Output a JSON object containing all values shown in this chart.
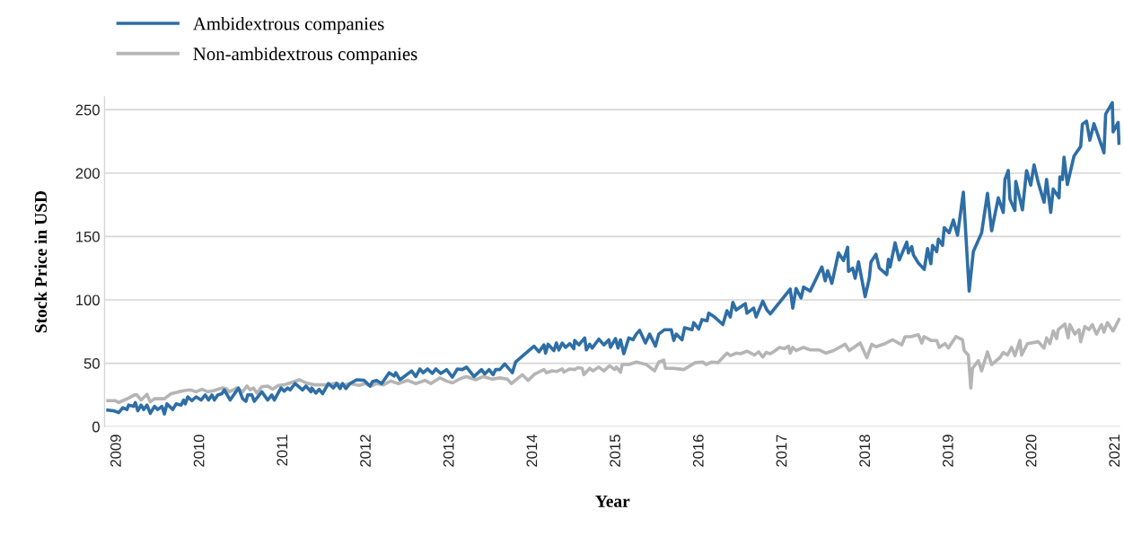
{
  "chart_data": {
    "type": "line",
    "xlabel": "Year",
    "ylabel": "Stock Price in USD",
    "xlim": [
      2008.85,
      2021.06
    ],
    "xticks": [
      2009,
      2010,
      2011,
      2012,
      2013,
      2014,
      2015,
      2016,
      2017,
      2018,
      2019,
      2020,
      2021
    ],
    "ylim": [
      0,
      260
    ],
    "yticks": [
      0,
      50,
      100,
      150,
      200,
      250
    ],
    "grid": "y",
    "legend": "top left",
    "marker": "none",
    "line_style": "solid",
    "series": [
      {
        "name": "Ambidextrous companies",
        "color": "#2e6ea6",
        "x": [
          2008.89,
          2008.96,
          2009.02,
          2009.07,
          2009.12,
          2009.14,
          2009.2,
          2009.22,
          2009.25,
          2009.29,
          2009.32,
          2009.36,
          2009.4,
          2009.45,
          2009.49,
          2009.54,
          2009.57,
          2009.6,
          2009.67,
          2009.71,
          2009.77,
          2009.8,
          2009.82,
          2009.85,
          2009.9,
          2009.95,
          2010.01,
          2010.06,
          2010.1,
          2010.14,
          2010.17,
          2010.21,
          2010.26,
          2010.29,
          2010.36,
          2010.46,
          2010.51,
          2010.55,
          2010.57,
          2010.62,
          2010.65,
          2010.74,
          2010.81,
          2010.86,
          2010.89,
          2010.97,
          2011.01,
          2011.05,
          2011.08,
          2011.14,
          2011.23,
          2011.27,
          2011.33,
          2011.34,
          2011.39,
          2011.43,
          2011.47,
          2011.54,
          2011.6,
          2011.64,
          2011.68,
          2011.71,
          2011.75,
          2011.8,
          2011.88,
          2011.97,
          2012.04,
          2012.07,
          2012.12,
          2012.18,
          2012.27,
          2012.33,
          2012.35,
          2012.4,
          2012.54,
          2012.59,
          2012.64,
          2012.68,
          2012.73,
          2012.79,
          2012.83,
          2012.89,
          2012.96,
          2013.03,
          2013.09,
          2013.15,
          2013.2,
          2013.29,
          2013.38,
          2013.42,
          2013.47,
          2013.52,
          2013.55,
          2013.6,
          2013.66,
          2013.75,
          2013.79,
          2014.01,
          2014.07,
          2014.13,
          2014.15,
          2014.18,
          2014.25,
          2014.28,
          2014.31,
          2014.35,
          2014.39,
          2014.44,
          2014.49,
          2014.5,
          2014.55,
          2014.62,
          2014.64,
          2014.68,
          2014.71,
          2014.79,
          2014.85,
          2014.91,
          2014.93,
          2014.99,
          2015.02,
          2015.05,
          2015.09,
          2015.15,
          2015.2,
          2015.24,
          2015.28,
          2015.35,
          2015.4,
          2015.47,
          2015.51,
          2015.58,
          2015.66,
          2015.69,
          2015.72,
          2015.79,
          2015.82,
          2015.91,
          2015.93,
          2015.99,
          2016.03,
          2016.09,
          2016.11,
          2016.18,
          2016.28,
          2016.33,
          2016.37,
          2016.4,
          2016.44,
          2016.55,
          2016.57,
          2016.65,
          2016.68,
          2016.76,
          2016.81,
          2016.85,
          2017.09,
          2017.12,
          2017.16,
          2017.22,
          2017.25,
          2017.33,
          2017.47,
          2017.51,
          2017.54,
          2017.59,
          2017.67,
          2017.73,
          2017.78,
          2017.79,
          2017.84,
          2017.87,
          2017.91,
          2017.99,
          2018.04,
          2018.06,
          2018.12,
          2018.16,
          2018.25,
          2018.27,
          2018.29,
          2018.35,
          2018.4,
          2018.49,
          2018.51,
          2018.55,
          2018.57,
          2018.63,
          2018.7,
          2018.74,
          2018.78,
          2018.8,
          2018.85,
          2018.87,
          2018.92,
          2018.94,
          2019.0,
          2019.05,
          2019.1,
          2019.17,
          2019.24,
          2019.29,
          2019.39,
          2019.46,
          2019.51,
          2019.59,
          2019.65,
          2019.67,
          2019.71,
          2019.73,
          2019.79,
          2019.8,
          2019.88,
          2019.93,
          2019.98,
          2020.02,
          2020.07,
          2020.14,
          2020.17,
          2020.22,
          2020.25,
          2020.32,
          2020.33,
          2020.36,
          2020.38,
          2020.42,
          2020.5,
          2020.58,
          2020.6,
          2020.65,
          2020.69,
          2020.74,
          2020.86,
          2020.88,
          2020.96,
          2020.97,
          2021.03,
          2021.04
        ],
        "values": [
          13,
          12.5,
          11,
          15,
          13.5,
          17,
          16,
          19,
          12.5,
          17,
          13.5,
          17,
          10.5,
          16,
          13.5,
          16,
          10,
          18,
          13.5,
          18,
          17,
          21,
          18,
          23.5,
          20.5,
          23.5,
          21,
          25,
          21,
          25,
          21,
          25,
          26,
          29,
          21,
          30.5,
          22,
          20,
          25,
          25,
          20,
          27.5,
          21,
          25,
          21,
          30.5,
          28,
          30.5,
          29,
          34,
          29,
          32,
          27.5,
          30.5,
          26.5,
          29.5,
          26,
          34,
          30.5,
          34,
          30,
          34,
          30,
          34,
          37,
          36.5,
          32,
          35.5,
          36.5,
          34,
          42.5,
          40,
          42.5,
          37,
          44,
          39.5,
          45.5,
          42.5,
          45.5,
          42,
          45.5,
          42,
          45,
          39,
          45.5,
          45,
          47,
          39.5,
          45,
          41.5,
          45,
          41,
          45,
          45,
          49.5,
          42.5,
          51,
          63.5,
          59,
          64.5,
          58,
          65,
          60,
          66,
          60.5,
          66,
          62.5,
          65.5,
          61.5,
          68,
          64.5,
          70,
          60.5,
          65,
          62,
          69,
          64.5,
          68.5,
          62.5,
          69.5,
          62,
          68.5,
          57.5,
          70,
          68.5,
          73,
          76,
          66,
          73,
          63.5,
          73,
          76.5,
          76.5,
          68,
          73,
          68.5,
          78,
          76.5,
          82,
          77,
          84.5,
          83.5,
          89.5,
          86.5,
          80.5,
          91.5,
          86.5,
          98,
          92,
          97,
          89.5,
          93.5,
          86.5,
          99,
          92,
          89,
          108.5,
          93.5,
          109,
          101.5,
          110,
          107,
          126,
          115,
          123,
          113,
          137,
          131,
          141.5,
          122.5,
          125,
          117,
          130,
          102.5,
          117,
          130,
          136,
          125,
          120,
          132,
          126,
          145,
          131.5,
          145.5,
          137,
          142,
          135.5,
          129,
          124,
          140.5,
          128.5,
          143,
          138,
          148,
          143,
          157,
          153,
          163,
          151,
          185,
          107,
          138,
          153,
          184,
          154.5,
          180.5,
          169,
          195,
          202,
          179.5,
          170.5,
          193.5,
          171,
          202,
          190.5,
          206.5,
          192.5,
          177,
          195,
          169,
          187.5,
          180.5,
          197,
          195,
          212.5,
          191,
          213.5,
          221,
          238.5,
          241,
          226,
          239,
          216,
          246.5,
          255.5,
          232.5,
          240,
          223.5
        ]
      },
      {
        "name": "Non-ambidextrous companies",
        "color": "#b5b5b5",
        "x": [
          2008.89,
          2008.98,
          2009.02,
          2009.07,
          2009.14,
          2009.21,
          2009.24,
          2009.29,
          2009.36,
          2009.4,
          2009.45,
          2009.54,
          2009.57,
          2009.65,
          2009.74,
          2009.81,
          2009.88,
          2009.95,
          2010.02,
          2010.09,
          2010.17,
          2010.26,
          2010.31,
          2010.35,
          2010.44,
          2010.51,
          2010.56,
          2010.6,
          2010.64,
          2010.68,
          2010.74,
          2010.81,
          2010.87,
          2010.94,
          2011.01,
          2011.08,
          2011.19,
          2011.27,
          2011.37,
          2011.55,
          2011.64,
          2011.7,
          2011.8,
          2011.91,
          2011.98,
          2012.05,
          2012.12,
          2012.2,
          2012.29,
          2012.38,
          2012.49,
          2012.59,
          2012.7,
          2012.77,
          2012.88,
          2012.96,
          2013.03,
          2013.1,
          2013.17,
          2013.2,
          2013.31,
          2013.4,
          2013.51,
          2013.6,
          2013.69,
          2013.74,
          2013.87,
          2013.94,
          2014.02,
          2014.13,
          2014.16,
          2014.23,
          2014.28,
          2014.35,
          2014.37,
          2014.44,
          2014.5,
          2014.54,
          2014.59,
          2014.61,
          2014.68,
          2014.72,
          2014.79,
          2014.85,
          2014.92,
          2014.98,
          2015.0,
          2015.05,
          2015.07,
          2015.15,
          2015.24,
          2015.36,
          2015.46,
          2015.51,
          2015.57,
          2015.59,
          2015.69,
          2015.81,
          2015.95,
          2016.04,
          2016.08,
          2016.15,
          2016.22,
          2016.33,
          2016.37,
          2016.44,
          2016.49,
          2016.57,
          2016.66,
          2016.71,
          2016.76,
          2016.8,
          2016.85,
          2016.91,
          2016.96,
          2017.02,
          2017.07,
          2017.09,
          2017.12,
          2017.16,
          2017.25,
          2017.33,
          2017.44,
          2017.52,
          2017.61,
          2017.75,
          2017.8,
          2017.93,
          2018.01,
          2018.07,
          2018.12,
          2018.23,
          2018.32,
          2018.43,
          2018.47,
          2018.54,
          2018.63,
          2018.67,
          2018.7,
          2018.78,
          2018.85,
          2018.88,
          2018.95,
          2018.99,
          2019.08,
          2019.16,
          2019.18,
          2019.23,
          2019.26,
          2019.28,
          2019.35,
          2019.39,
          2019.46,
          2019.51,
          2019.61,
          2019.65,
          2019.7,
          2019.75,
          2019.79,
          2019.85,
          2019.87,
          2019.94,
          2020.07,
          2020.14,
          2020.17,
          2020.21,
          2020.25,
          2020.29,
          2020.31,
          2020.39,
          2020.43,
          2020.45,
          2020.51,
          2020.56,
          2020.58,
          2020.63,
          2020.68,
          2020.72,
          2020.77,
          2020.83,
          2020.86,
          2020.9,
          2020.97,
          2021.04
        ],
        "values": [
          20.5,
          20.5,
          19,
          20.5,
          22.5,
          25,
          25,
          21,
          25.5,
          19.5,
          22,
          22,
          22,
          26,
          27.5,
          28.5,
          29,
          27.5,
          29.5,
          27.5,
          28.5,
          30.5,
          30,
          27.5,
          30.5,
          27.5,
          32,
          29,
          30.5,
          26.5,
          31.5,
          32,
          29.5,
          32.5,
          33,
          34.5,
          37,
          34.5,
          33,
          33,
          34.5,
          32.5,
          34,
          32.5,
          34,
          32,
          34,
          33,
          36,
          34,
          36.5,
          34,
          36.5,
          34,
          38.5,
          36,
          34.5,
          37,
          39,
          39.5,
          37,
          39.5,
          37.5,
          38.5,
          37.5,
          34,
          41,
          36.5,
          41.5,
          45,
          42.5,
          44,
          43.5,
          45.5,
          43,
          45.5,
          45,
          46.5,
          46,
          41,
          46,
          44,
          47,
          44,
          48,
          45,
          47,
          43,
          49,
          49,
          51,
          49,
          44,
          51,
          52.5,
          46,
          46,
          45,
          50.5,
          51,
          49,
          51,
          50.5,
          58,
          56,
          58,
          57.5,
          59.5,
          56.5,
          59,
          55,
          58.5,
          57.5,
          60,
          62.5,
          61.5,
          63.5,
          58,
          62.5,
          60,
          62.5,
          60.5,
          60.5,
          58,
          60,
          65,
          60,
          66,
          54.5,
          65,
          63,
          65.5,
          68.5,
          64.5,
          71,
          71,
          72.5,
          66,
          71,
          68,
          68,
          62.5,
          65.5,
          62,
          71,
          68.5,
          60,
          56.5,
          30.5,
          46,
          52,
          44,
          59,
          49,
          54.5,
          58.5,
          56.5,
          62.5,
          56,
          68,
          56.5,
          65.5,
          67,
          62,
          70,
          65.5,
          75.5,
          69.5,
          76.5,
          81,
          70,
          80.5,
          73,
          76.5,
          67,
          79,
          76.5,
          80.5,
          73,
          80.5,
          74.5,
          82,
          75.5,
          84.5
        ]
      }
    ]
  }
}
